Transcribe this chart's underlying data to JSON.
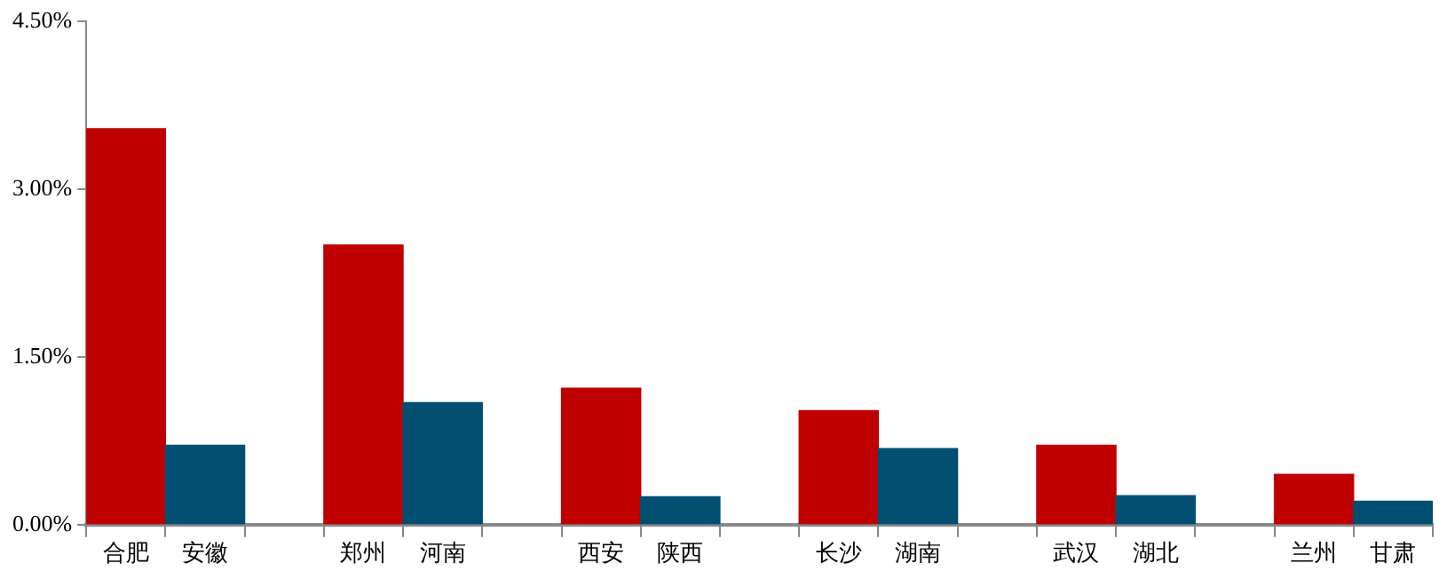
{
  "chart_data": {
    "type": "bar",
    "categories": [
      "合肥",
      "安徽",
      null,
      "郑州",
      "河南",
      null,
      "西安",
      "陕西",
      null,
      "长沙",
      "湖南",
      null,
      "武汉",
      "湖北",
      null,
      "兰州",
      "甘肃"
    ],
    "values": [
      3.54,
      0.71,
      null,
      2.5,
      1.09,
      null,
      1.22,
      0.25,
      null,
      1.02,
      0.68,
      null,
      0.71,
      0.26,
      null,
      0.45,
      0.21
    ],
    "colors": [
      "#c00000",
      "#004f71",
      null,
      "#c00000",
      "#004f71",
      null,
      "#c00000",
      "#004f71",
      null,
      "#c00000",
      "#004f71",
      null,
      "#c00000",
      "#004f71",
      null,
      "#c00000",
      "#004f71"
    ],
    "ylim": [
      0,
      4.5
    ],
    "yticks": [
      {
        "value": 0,
        "label": "0.00%"
      },
      {
        "value": 1.5,
        "label": "1.50%"
      },
      {
        "value": 3,
        "label": "3.00%"
      },
      {
        "value": 4.5,
        "label": "4.50%"
      }
    ],
    "grid": false,
    "legend": false
  }
}
